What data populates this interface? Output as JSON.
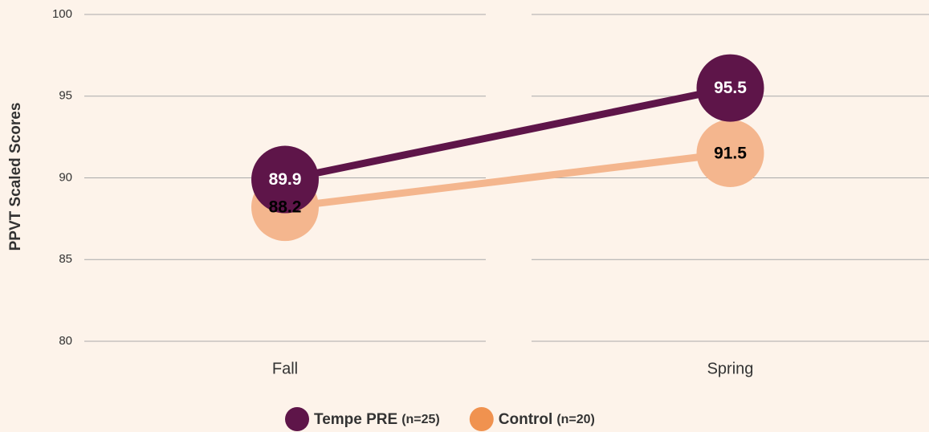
{
  "chart_data": {
    "type": "line",
    "y_label": "PPVT Scaled Scores",
    "categories": [
      "Fall",
      "Spring"
    ],
    "series": [
      {
        "name": "Tempe PRE",
        "note": "(n=25)",
        "color": "#5e1549",
        "label_color": "#ffffff",
        "legend_color": "#5e1549",
        "values": [
          89.9,
          95.5
        ]
      },
      {
        "name": "Control",
        "note": "(n=20)",
        "color": "#f4b68e",
        "label_color": "#000000",
        "legend_color": "#f0924f",
        "values": [
          88.2,
          91.5
        ]
      }
    ],
    "ylim": [
      80,
      100
    ],
    "yticks": [
      80,
      85,
      90,
      95,
      100
    ],
    "grid": true
  }
}
